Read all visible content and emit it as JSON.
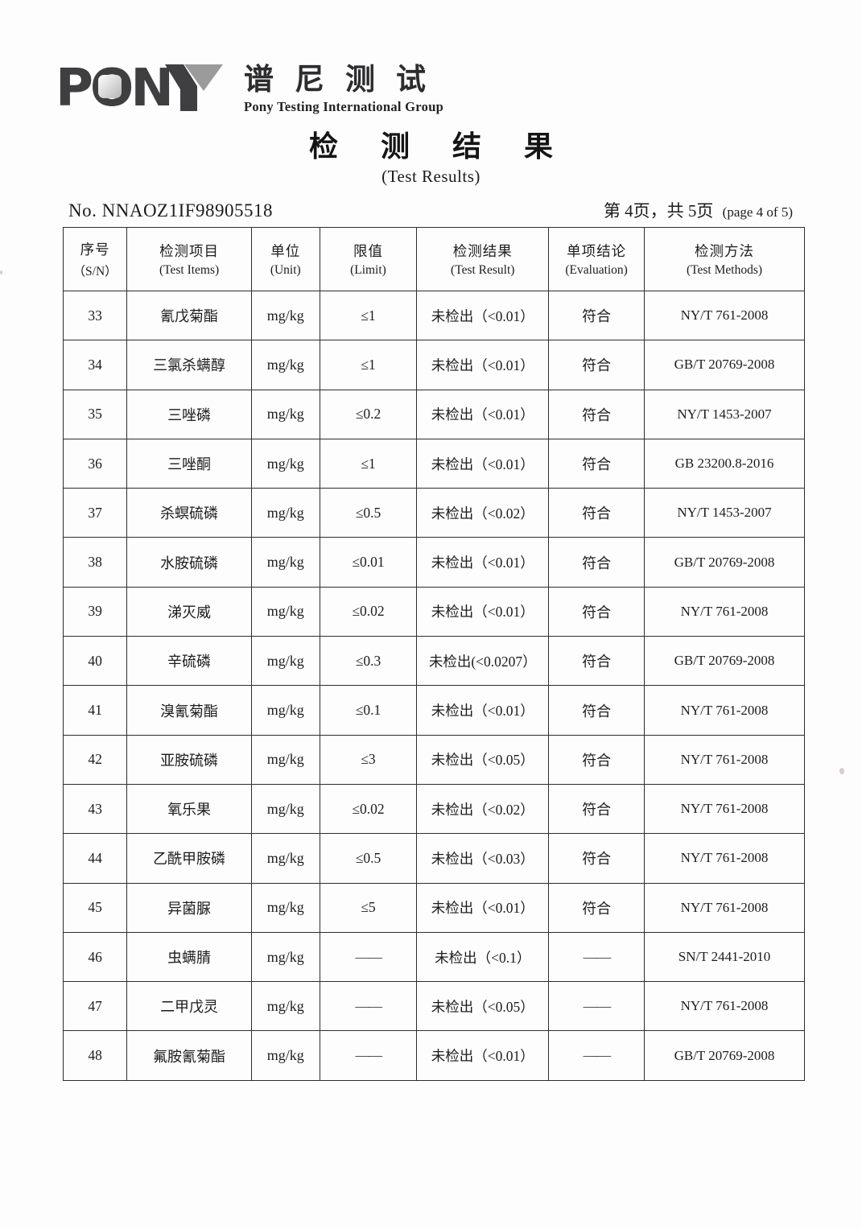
{
  "brand": {
    "logo_text": "PONY",
    "name_cn": "谱尼测试",
    "name_en": "Pony Testing International Group"
  },
  "title": {
    "cn": "检 测 结 果",
    "en": "(Test Results)"
  },
  "meta": {
    "report_no": "No. NNAOZ1IF98905518",
    "page_cn": "第 4页，共 5页",
    "page_en": "(page 4 of 5)"
  },
  "colors": {
    "logo_dark": "#3f3f41",
    "logo_gray": "#9b9b9b",
    "text": "#1c1c1c",
    "border": "#2d2d2d"
  },
  "table": {
    "headers": [
      {
        "cn": "序号",
        "en": "（S/N）"
      },
      {
        "cn": "检测项目",
        "en": "(Test Items)"
      },
      {
        "cn": "单位",
        "en": "(Unit)"
      },
      {
        "cn": "限值",
        "en": "(Limit)"
      },
      {
        "cn": "检测结果",
        "en": "(Test Result)"
      },
      {
        "cn": "单项结论",
        "en": "(Evaluation)"
      },
      {
        "cn": "检测方法",
        "en": "(Test Methods)"
      }
    ],
    "rows": [
      [
        "33",
        "氰戊菊酯",
        "mg/kg",
        "≤1",
        "未检出（<0.01）",
        "符合",
        "NY/T 761-2008"
      ],
      [
        "34",
        "三氯杀螨醇",
        "mg/kg",
        "≤1",
        "未检出（<0.01）",
        "符合",
        "GB/T 20769-2008"
      ],
      [
        "35",
        "三唑磷",
        "mg/kg",
        "≤0.2",
        "未检出（<0.01）",
        "符合",
        "NY/T 1453-2007"
      ],
      [
        "36",
        "三唑酮",
        "mg/kg",
        "≤1",
        "未检出（<0.01）",
        "符合",
        "GB 23200.8-2016"
      ],
      [
        "37",
        "杀螟硫磷",
        "mg/kg",
        "≤0.5",
        "未检出（<0.02）",
        "符合",
        "NY/T 1453-2007"
      ],
      [
        "38",
        "水胺硫磷",
        "mg/kg",
        "≤0.01",
        "未检出（<0.01）",
        "符合",
        "GB/T 20769-2008"
      ],
      [
        "39",
        "涕灭威",
        "mg/kg",
        "≤0.02",
        "未检出（<0.01）",
        "符合",
        "NY/T 761-2008"
      ],
      [
        "40",
        "辛硫磷",
        "mg/kg",
        "≤0.3",
        "未检出(<0.0207）",
        "符合",
        "GB/T 20769-2008"
      ],
      [
        "41",
        "溴氰菊酯",
        "mg/kg",
        "≤0.1",
        "未检出（<0.01）",
        "符合",
        "NY/T 761-2008"
      ],
      [
        "42",
        "亚胺硫磷",
        "mg/kg",
        "≤3",
        "未检出（<0.05）",
        "符合",
        "NY/T 761-2008"
      ],
      [
        "43",
        "氧乐果",
        "mg/kg",
        "≤0.02",
        "未检出（<0.02）",
        "符合",
        "NY/T 761-2008"
      ],
      [
        "44",
        "乙酰甲胺磷",
        "mg/kg",
        "≤0.5",
        "未检出（<0.03）",
        "符合",
        "NY/T 761-2008"
      ],
      [
        "45",
        "异菌脲",
        "mg/kg",
        "≤5",
        "未检出（<0.01）",
        "符合",
        "NY/T 761-2008"
      ],
      [
        "46",
        "虫螨腈",
        "mg/kg",
        "——",
        "未检出（<0.1）",
        "——",
        "SN/T 2441-2010"
      ],
      [
        "47",
        "二甲戊灵",
        "mg/kg",
        "——",
        "未检出（<0.05）",
        "——",
        "NY/T 761-2008"
      ],
      [
        "48",
        "氟胺氰菊酯",
        "mg/kg",
        "——",
        "未检出（<0.01）",
        "——",
        "GB/T 20769-2008"
      ]
    ]
  }
}
